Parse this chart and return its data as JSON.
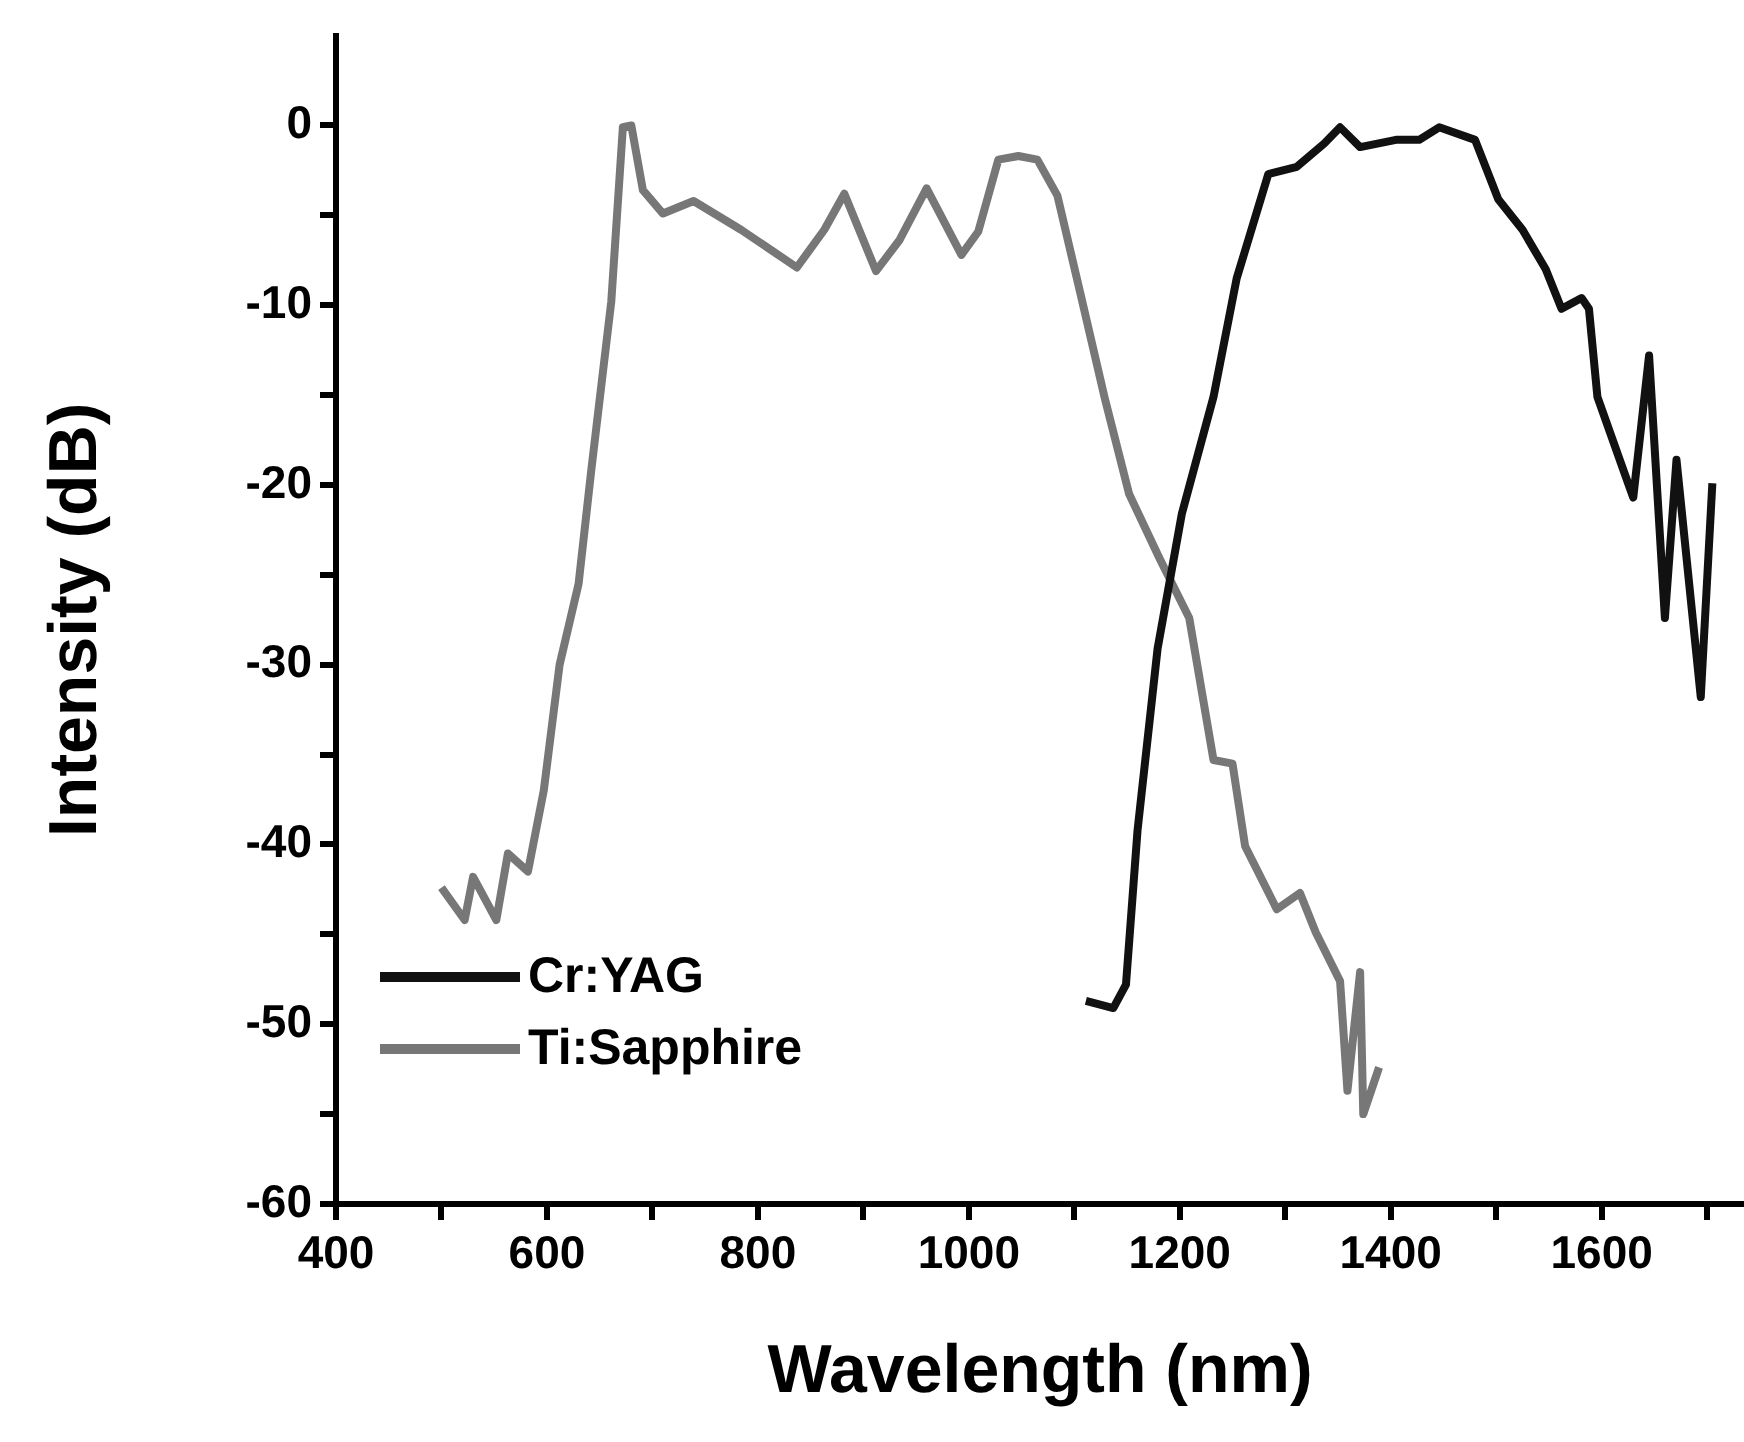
{
  "chart_data": {
    "type": "line",
    "xlabel": "Wavelength (nm)",
    "ylabel": "Intensity (dB)",
    "legend": "bottom left",
    "xlim": [
      400,
      1735
    ],
    "xticks": [
      400,
      {
        "value": 500,
        "label": null
      },
      600,
      {
        "value": 700,
        "label": null
      },
      800,
      {
        "value": 900,
        "label": null
      },
      1000,
      {
        "value": 1100,
        "label": null
      },
      1200,
      {
        "value": 1300,
        "label": null
      },
      1400,
      {
        "value": 1500,
        "label": null
      },
      1600,
      {
        "value": 1700,
        "label": null
      }
    ],
    "ylim": [
      -60,
      5
    ],
    "yticks": [
      -60,
      {
        "value": -55,
        "label": null
      },
      -50,
      {
        "value": -45,
        "label": null
      },
      -40,
      {
        "value": -35,
        "label": null
      },
      -30,
      {
        "value": -25,
        "label": null
      },
      -20,
      {
        "value": -15,
        "label": null
      },
      -10,
      {
        "value": -5,
        "label": null
      },
      0
    ],
    "series": [
      {
        "name": "Cr:YAG",
        "color": "#111111",
        "x": [
          1111,
          1137,
          1149,
          1160,
          1179,
          1202,
          1232,
          1254,
          1284,
          1311,
          1337,
          1352,
          1371,
          1405,
          1427,
          1446,
          1480,
          1502,
          1525,
          1547,
          1562,
          1581,
          1588,
          1596,
          1622,
          1630,
          1645,
          1660,
          1671,
          1694,
          1705
        ],
        "values": [
          -48.7,
          -49.1,
          -47.8,
          -39.2,
          -29.1,
          -21.6,
          -15.1,
          -8.5,
          -2.7,
          -2.3,
          -1.0,
          -0.1,
          -1.2,
          -0.8,
          -0.8,
          -0.1,
          -0.8,
          -4.1,
          -5.8,
          -8.0,
          -10.2,
          -9.6,
          -10.2,
          -15.1,
          -19.4,
          -20.7,
          -12.8,
          -27.4,
          -18.6,
          -31.8,
          -19.9
        ]
      },
      {
        "name": "Ti:Sapphire",
        "color": "#777777",
        "x": [
          500,
          522,
          530,
          552,
          563,
          582,
          597,
          612,
          630,
          642,
          661,
          672,
          680,
          691,
          710,
          739,
          784,
          837,
          863,
          882,
          912,
          934,
          960,
          993,
          1009,
          1028,
          1047,
          1065,
          1084,
          1106,
          1129,
          1152,
          1181,
          1209,
          1232,
          1250,
          1262,
          1292,
          1314,
          1329,
          1352,
          1359,
          1371,
          1374,
          1389
        ],
        "values": [
          -42.4,
          -44.2,
          -41.8,
          -44.2,
          -40.5,
          -41.5,
          -37,
          -30,
          -25.5,
          -19.2,
          -9.8,
          -0.1,
          0,
          -3.6,
          -4.9,
          -4.2,
          -5.8,
          -7.9,
          -5.8,
          -3.8,
          -8.1,
          -6.4,
          -3.5,
          -7.2,
          -5.9,
          -1.9,
          -1.7,
          -1.9,
          -3.9,
          -9.4,
          -15.2,
          -20.5,
          -24.1,
          -27.4,
          -35.3,
          -35.5,
          -40.1,
          -43.6,
          -42.7,
          -44.9,
          -47.6,
          -53.7,
          -47.1,
          -55,
          -52.4
        ]
      }
    ]
  }
}
